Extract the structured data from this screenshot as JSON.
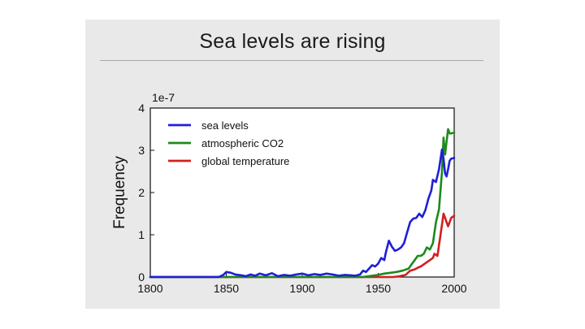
{
  "slide": {
    "title": "Sea levels are rising"
  },
  "chart_data": {
    "type": "line",
    "title": "Sea levels are rising",
    "xlabel": "",
    "ylabel": "Frequency",
    "y_scale_label": "1e-7",
    "xlim": [
      1800,
      2000
    ],
    "ylim": [
      0,
      4
    ],
    "xticks": [
      1800,
      1850,
      1900,
      1950,
      2000
    ],
    "xtick_labels": [
      "1800",
      "1850",
      "1900",
      "1950",
      "2000"
    ],
    "yticks": [
      0,
      1,
      2,
      3,
      4
    ],
    "ytick_labels": [
      "0",
      "1",
      "2",
      "3",
      "4"
    ],
    "legend_position": "top-left",
    "series": [
      {
        "name": "sea levels",
        "color": "#1f1fd6",
        "x": [
          1800,
          1845,
          1848,
          1850,
          1853,
          1856,
          1860,
          1863,
          1866,
          1869,
          1872,
          1876,
          1880,
          1884,
          1888,
          1892,
          1896,
          1900,
          1904,
          1908,
          1912,
          1916,
          1920,
          1924,
          1928,
          1932,
          1935,
          1938,
          1940,
          1942,
          1944,
          1946,
          1948,
          1950,
          1952,
          1954,
          1955,
          1957,
          1959,
          1961,
          1963,
          1965,
          1967,
          1969,
          1971,
          1973,
          1975,
          1977,
          1979,
          1981,
          1983,
          1985,
          1986,
          1988,
          1990,
          1992,
          1993,
          1994,
          1995,
          1996,
          1997,
          1998,
          2000
        ],
        "values": [
          0,
          0,
          0.05,
          0.12,
          0.1,
          0.06,
          0.04,
          0.02,
          0.06,
          0.03,
          0.08,
          0.04,
          0.09,
          0.02,
          0.05,
          0.03,
          0.06,
          0.08,
          0.04,
          0.07,
          0.05,
          0.08,
          0.06,
          0.03,
          0.05,
          0.04,
          0.03,
          0.06,
          0.15,
          0.12,
          0.2,
          0.28,
          0.25,
          0.32,
          0.45,
          0.4,
          0.58,
          0.86,
          0.72,
          0.62,
          0.65,
          0.7,
          0.8,
          1.05,
          1.3,
          1.38,
          1.4,
          1.5,
          1.42,
          1.58,
          1.85,
          2.05,
          2.3,
          2.25,
          2.55,
          3.02,
          2.8,
          2.45,
          2.38,
          2.55,
          2.75,
          2.8,
          2.82
        ]
      },
      {
        "name": "atmospheric CO2",
        "color": "#1d8a1d",
        "x": [
          1800,
          1900,
          1930,
          1940,
          1946,
          1950,
          1954,
          1958,
          1962,
          1966,
          1970,
          1972,
          1974,
          1976,
          1978,
          1980,
          1982,
          1984,
          1986,
          1988,
          1990,
          1992,
          1993,
          1994,
          1995,
          1996,
          1997,
          1998,
          2000
        ],
        "values": [
          0,
          0,
          0,
          0,
          0.03,
          0.05,
          0.08,
          0.1,
          0.12,
          0.15,
          0.2,
          0.3,
          0.4,
          0.5,
          0.5,
          0.55,
          0.7,
          0.65,
          0.8,
          1.3,
          1.6,
          2.5,
          3.3,
          2.9,
          3.2,
          3.5,
          3.4,
          3.4,
          3.42
        ]
      },
      {
        "name": "global temperature",
        "color": "#d21f1f",
        "x": [
          1800,
          1900,
          1940,
          1960,
          1964,
          1968,
          1971,
          1974,
          1976,
          1978,
          1980,
          1982,
          1984,
          1986,
          1987,
          1989,
          1991,
          1993,
          1994,
          1995,
          1996,
          1998,
          2000
        ],
        "values": [
          0,
          0,
          0,
          0,
          0.02,
          0.05,
          0.15,
          0.18,
          0.22,
          0.25,
          0.3,
          0.35,
          0.4,
          0.45,
          0.55,
          0.5,
          1.0,
          1.5,
          1.4,
          1.3,
          1.2,
          1.4,
          1.45
        ]
      }
    ]
  }
}
